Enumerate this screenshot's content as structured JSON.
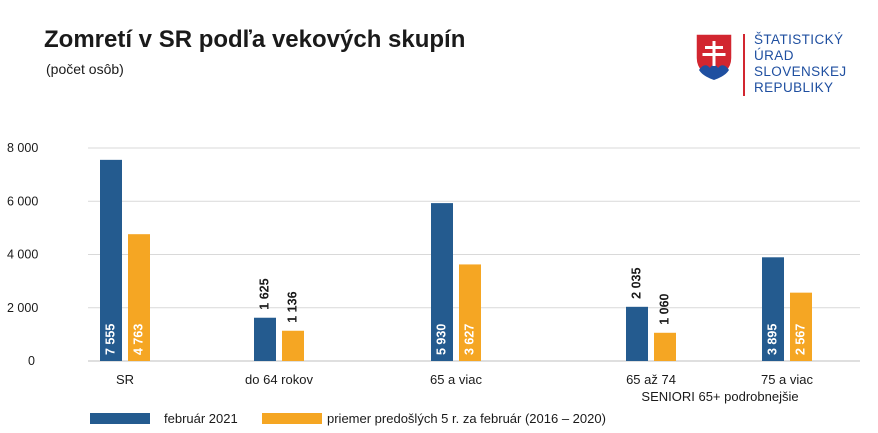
{
  "header": {
    "title": "Zomretí v SR podľa vekových skupín",
    "subtitle": "(počet osôb)"
  },
  "logo": {
    "lines": [
      "ŠTATISTICKÝ",
      "ÚRAD",
      "SLOVENSKEJ",
      "REPUBLIKY"
    ],
    "colors": {
      "red": "#d22630",
      "blue": "#1f4fa0",
      "white": "#ffffff"
    }
  },
  "legend": {
    "items": [
      {
        "label": "február 2021",
        "color": "#245b8f"
      },
      {
        "label": "priemer predošlých 5 r. za február (2016 – 2020)",
        "color": "#f5a623"
      }
    ]
  },
  "chart_data": {
    "type": "bar",
    "categories": [
      "SR",
      "do 64 rokov",
      "65 a viac",
      "65 až 74",
      "75 a viac"
    ],
    "series": [
      {
        "name": "február 2021",
        "color": "#245b8f",
        "values": [
          7555,
          1625,
          5930,
          2035,
          3895
        ],
        "labels": [
          "7 555",
          "1 625",
          "5 930",
          "2 035",
          "3 895"
        ]
      },
      {
        "name": "priemer predošlých 5 r. za február (2016 – 2020)",
        "color": "#f5a623",
        "values": [
          4763,
          1136,
          3627,
          1060,
          2567
        ],
        "labels": [
          "4 763",
          "1 136",
          "3 627",
          "1 060",
          "2 567"
        ]
      }
    ],
    "label_position": [
      "inside",
      "above",
      "inside",
      "above",
      "inside"
    ],
    "yticks": [
      0,
      2000,
      4000,
      6000,
      8000
    ],
    "ytick_labels": [
      "0",
      "2 000",
      "4 000",
      "6 000",
      "8 000"
    ],
    "ylim": [
      0,
      8000
    ],
    "grid": true,
    "group_annotation": {
      "text": "SENIORI 65+ podrobnejšie",
      "categories": [
        "65 až 74",
        "75 a viac"
      ]
    },
    "legend_position": "bottom-left"
  }
}
